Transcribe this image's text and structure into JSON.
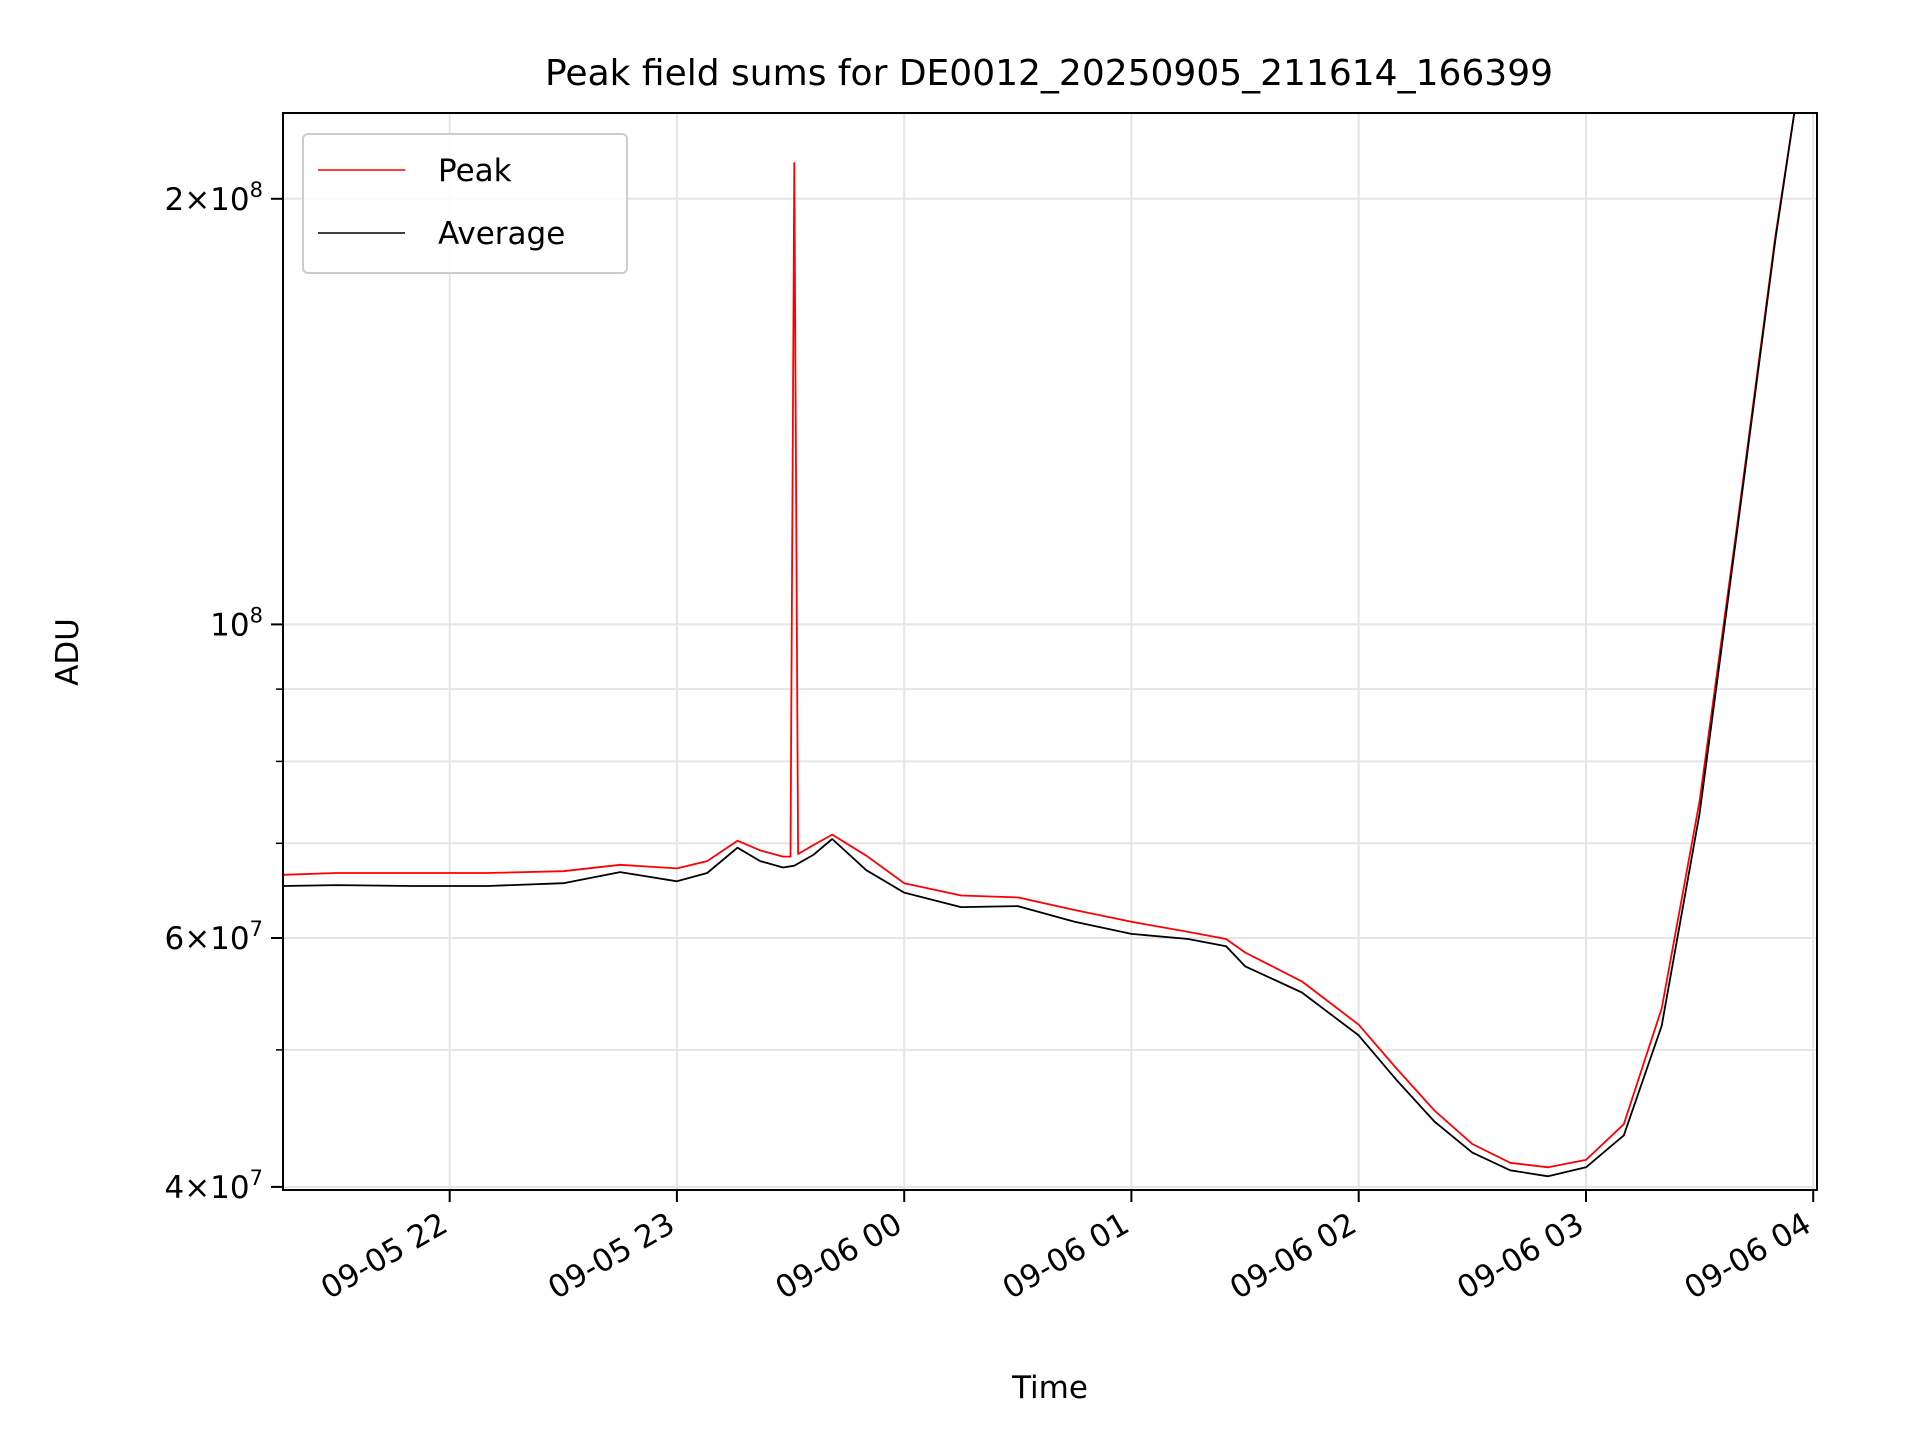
{
  "chart_data": {
    "type": "line",
    "title": "Peak field sums for DE0012_20250905_211614_166399",
    "xlabel": "Time",
    "ylabel": "ADU",
    "yscale": "log",
    "ylim": [
      39800000,
      230000000
    ],
    "xlim": [
      "2025-09-05 21:16",
      "2025-09-06 04:01"
    ],
    "grid": true,
    "legend": {
      "position": "upper-left",
      "entries": [
        "Peak",
        "Average"
      ]
    },
    "x_ticks": [
      {
        "value": "2025-09-05 22:00",
        "label": "09-05 22"
      },
      {
        "value": "2025-09-05 23:00",
        "label": "09-05 23"
      },
      {
        "value": "2025-09-06 00:00",
        "label": "09-06 00"
      },
      {
        "value": "2025-09-06 01:00",
        "label": "09-06 01"
      },
      {
        "value": "2025-09-06 02:00",
        "label": "09-06 02"
      },
      {
        "value": "2025-09-06 03:00",
        "label": "09-06 03"
      },
      {
        "value": "2025-09-06 04:00",
        "label": "09-06 04"
      }
    ],
    "y_ticks_major": [
      {
        "value": 40000000,
        "mantissa": "4",
        "exp": "7"
      },
      {
        "value": 60000000,
        "mantissa": "6",
        "exp": "7"
      },
      {
        "value": 100000000,
        "mantissa": "",
        "exp": "8"
      },
      {
        "value": 200000000,
        "mantissa": "2",
        "exp": "8"
      }
    ],
    "y_ticks_minor": [
      50000000,
      70000000,
      80000000,
      90000000
    ],
    "series": [
      {
        "name": "Peak",
        "color": "#ff0000",
        "points": [
          [
            "2025-09-05 21:16",
            66500000
          ],
          [
            "2025-09-05 21:30",
            66700000
          ],
          [
            "2025-09-05 21:50",
            66700000
          ],
          [
            "2025-09-05 22:10",
            66700000
          ],
          [
            "2025-09-05 22:30",
            66900000
          ],
          [
            "2025-09-05 22:45",
            67600000
          ],
          [
            "2025-09-05 23:00",
            67200000
          ],
          [
            "2025-09-05 23:08",
            68000000
          ],
          [
            "2025-09-05 23:16",
            70300000
          ],
          [
            "2025-09-05 23:22",
            69200000
          ],
          [
            "2025-09-05 23:28",
            68500000
          ],
          [
            "2025-09-05 23:30",
            68500000
          ],
          [
            "2025-09-05 23:31",
            212000000
          ],
          [
            "2025-09-05 23:32",
            68800000
          ],
          [
            "2025-09-05 23:36",
            69800000
          ],
          [
            "2025-09-05 23:41",
            71000000
          ],
          [
            "2025-09-05 23:50",
            68600000
          ],
          [
            "2025-09-06 00:00",
            65600000
          ],
          [
            "2025-09-06 00:15",
            64300000
          ],
          [
            "2025-09-06 00:30",
            64100000
          ],
          [
            "2025-09-06 00:45",
            62800000
          ],
          [
            "2025-09-06 01:00",
            61600000
          ],
          [
            "2025-09-06 01:15",
            60600000
          ],
          [
            "2025-09-06 01:25",
            59900000
          ],
          [
            "2025-09-06 01:30",
            58600000
          ],
          [
            "2025-09-06 01:45",
            55900000
          ],
          [
            "2025-09-06 02:00",
            52100000
          ],
          [
            "2025-09-06 02:10",
            48500000
          ],
          [
            "2025-09-06 02:20",
            45300000
          ],
          [
            "2025-09-06 02:30",
            42900000
          ],
          [
            "2025-09-06 02:40",
            41600000
          ],
          [
            "2025-09-06 02:50",
            41300000
          ],
          [
            "2025-09-06 03:00",
            41800000
          ],
          [
            "2025-09-06 03:10",
            44300000
          ],
          [
            "2025-09-06 03:20",
            53500000
          ],
          [
            "2025-09-06 03:30",
            75000000
          ],
          [
            "2025-09-06 03:40",
            118000000
          ],
          [
            "2025-09-06 03:50",
            188000000
          ],
          [
            "2025-09-06 03:55",
            230000000
          ]
        ]
      },
      {
        "name": "Average",
        "color": "#000000",
        "points": [
          [
            "2025-09-05 21:16",
            65300000
          ],
          [
            "2025-09-05 21:30",
            65400000
          ],
          [
            "2025-09-05 21:50",
            65300000
          ],
          [
            "2025-09-05 22:10",
            65300000
          ],
          [
            "2025-09-05 22:30",
            65600000
          ],
          [
            "2025-09-05 22:45",
            66800000
          ],
          [
            "2025-09-05 23:00",
            65800000
          ],
          [
            "2025-09-05 23:08",
            66700000
          ],
          [
            "2025-09-05 23:16",
            69500000
          ],
          [
            "2025-09-05 23:22",
            68000000
          ],
          [
            "2025-09-05 23:28",
            67300000
          ],
          [
            "2025-09-05 23:31",
            67500000
          ],
          [
            "2025-09-05 23:36",
            68700000
          ],
          [
            "2025-09-05 23:41",
            70500000
          ],
          [
            "2025-09-05 23:50",
            67000000
          ],
          [
            "2025-09-06 00:00",
            64600000
          ],
          [
            "2025-09-06 00:15",
            63100000
          ],
          [
            "2025-09-06 00:30",
            63200000
          ],
          [
            "2025-09-06 00:45",
            61600000
          ],
          [
            "2025-09-06 01:00",
            60400000
          ],
          [
            "2025-09-06 01:15",
            59900000
          ],
          [
            "2025-09-06 01:25",
            59200000
          ],
          [
            "2025-09-06 01:30",
            57300000
          ],
          [
            "2025-09-06 01:45",
            54900000
          ],
          [
            "2025-09-06 02:00",
            51200000
          ],
          [
            "2025-09-06 02:10",
            47600000
          ],
          [
            "2025-09-06 02:20",
            44500000
          ],
          [
            "2025-09-06 02:30",
            42300000
          ],
          [
            "2025-09-06 02:40",
            41100000
          ],
          [
            "2025-09-06 02:50",
            40700000
          ],
          [
            "2025-09-06 03:00",
            41300000
          ],
          [
            "2025-09-06 03:10",
            43500000
          ],
          [
            "2025-09-06 03:20",
            52000000
          ],
          [
            "2025-09-06 03:30",
            73500000
          ],
          [
            "2025-09-06 03:40",
            117000000
          ],
          [
            "2025-09-06 03:50",
            187000000
          ],
          [
            "2025-09-06 03:55",
            230000000
          ]
        ]
      }
    ]
  }
}
